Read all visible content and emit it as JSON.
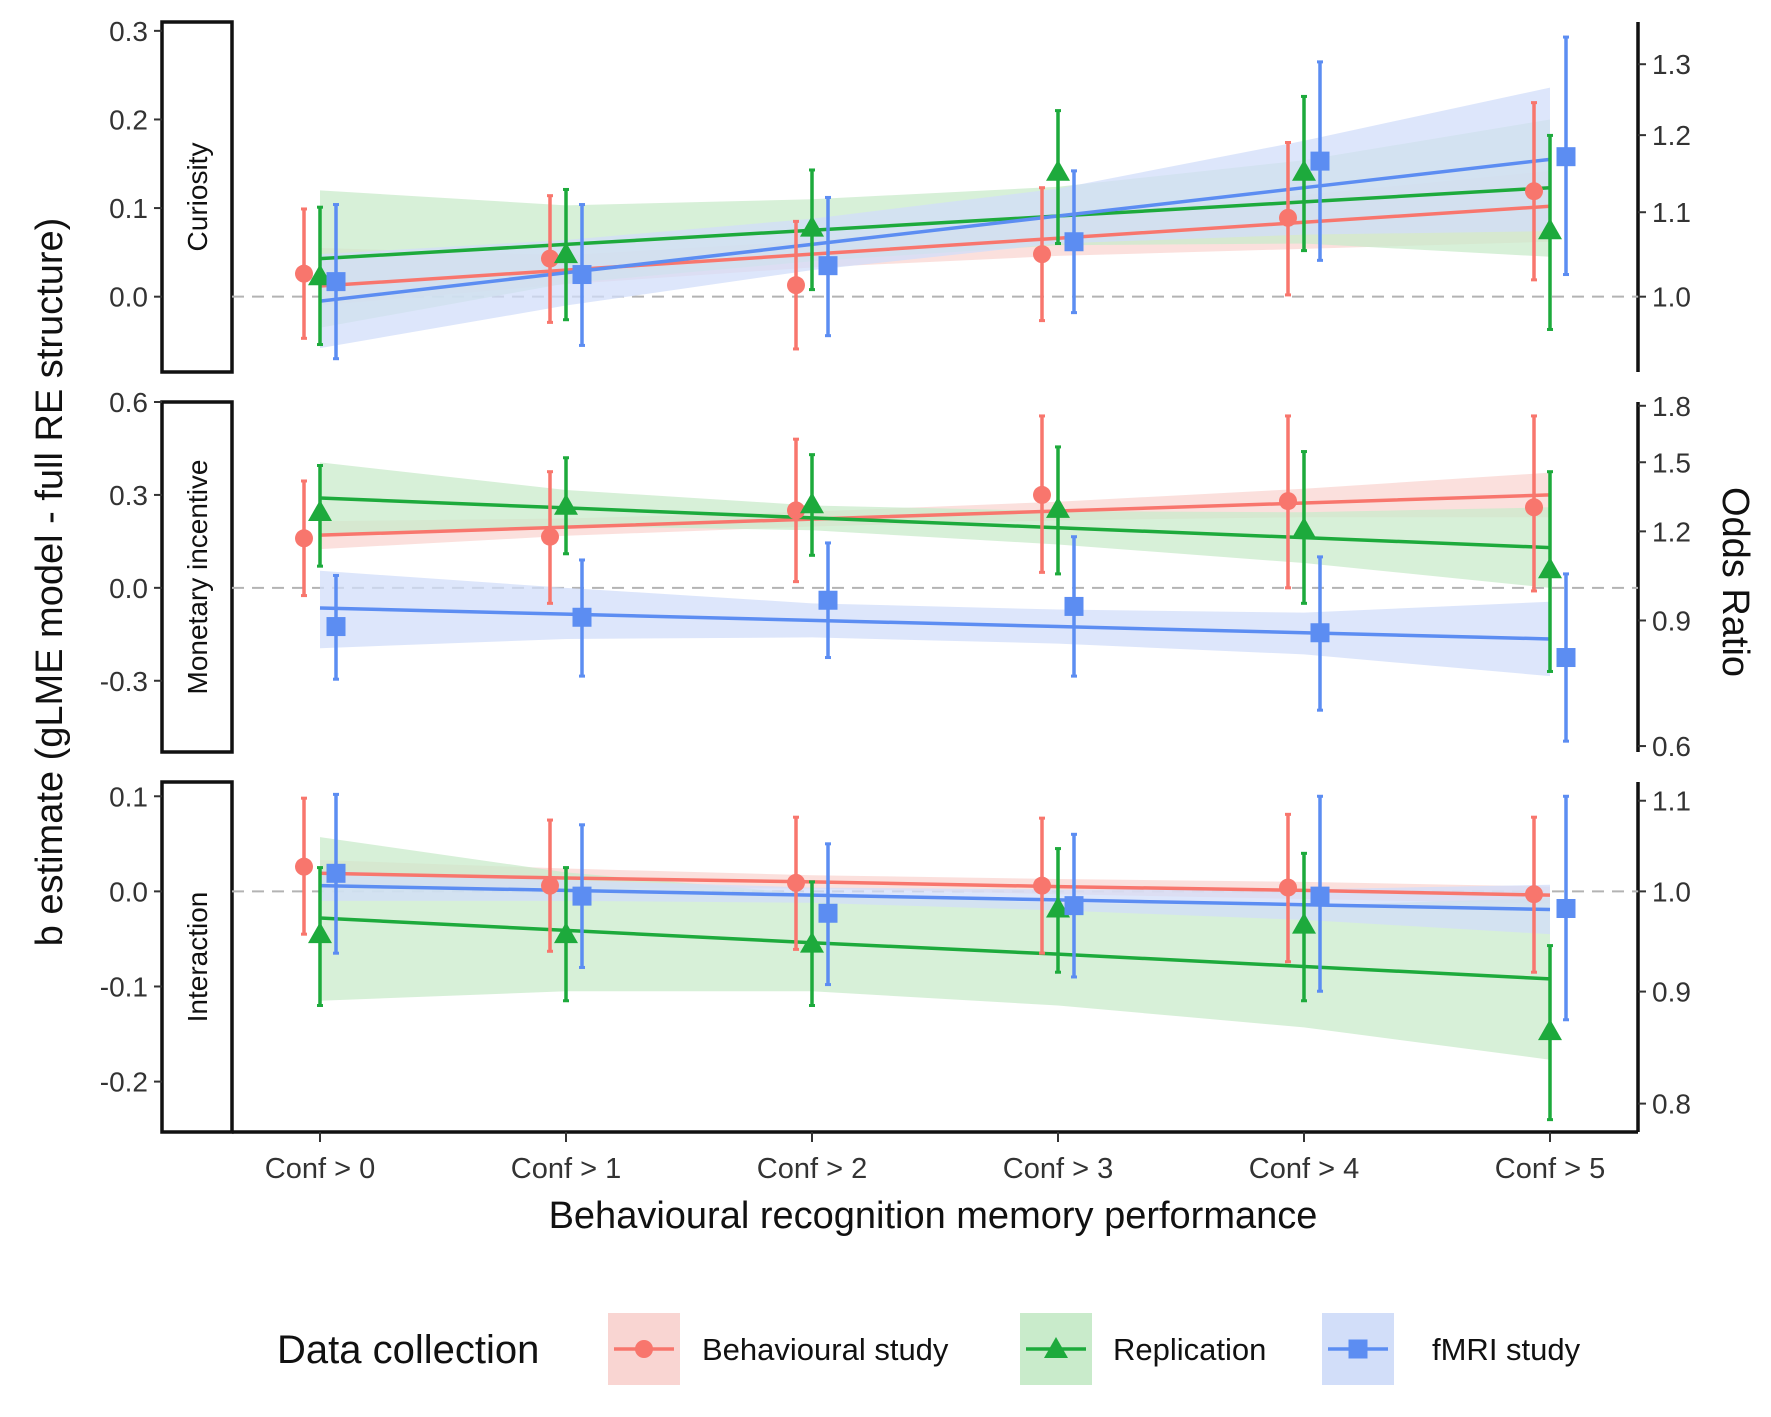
{
  "chart_data": {
    "type": "line",
    "xlabel": "Behavioural recognition memory performance",
    "ylabel": "b estimate (gLME model - full RE structure)",
    "ylabel_right": "Odds Ratio",
    "categories": [
      "Conf > 0",
      "Conf > 1",
      "Conf > 2",
      "Conf > 3",
      "Conf > 4",
      "Conf > 5"
    ],
    "legend": {
      "title": "Data collection",
      "position": "bottom",
      "entries": [
        {
          "name": "Behavioural study",
          "color": "#F8766D",
          "fill": "#F9D5D2",
          "shape": "circle"
        },
        {
          "name": "Replication",
          "color": "#1DAA3C",
          "fill": "#C9EBCB",
          "shape": "triangle"
        },
        {
          "name": "fMRI study",
          "color": "#5C8DF2",
          "fill": "#D2DEF9",
          "shape": "square"
        }
      ]
    },
    "reference_line": 0,
    "grid": false,
    "panels": [
      {
        "strip": "Curiosity",
        "ylim": [
          -0.085,
          0.31
        ],
        "yticks": [
          0.3,
          0.2,
          0.1,
          0.0
        ],
        "ytick_labels": [
          "0.3",
          "0.2",
          "0.1",
          "0.0"
        ],
        "right_ticks": [
          1.3,
          1.2,
          1.1,
          1.0
        ],
        "right_tick_labels": [
          "1.3",
          "1.2",
          "1.1",
          "1.0"
        ],
        "series": [
          {
            "name": "Behavioural study",
            "points": [
              0.026,
              0.043,
              0.013,
              0.048,
              0.089,
              0.119
            ],
            "lower": [
              -0.047,
              -0.029,
              -0.059,
              -0.027,
              0.002,
              0.019
            ],
            "upper": [
              0.099,
              0.114,
              0.085,
              0.123,
              0.174,
              0.219
            ],
            "fit": [
              0.012,
              0.03,
              0.048,
              0.066,
              0.084,
              0.102
            ],
            "band_lower": [
              -0.01,
              0.014,
              0.033,
              0.046,
              0.054,
              0.062
            ],
            "band_upper": [
              0.055,
              0.047,
              0.063,
              0.09,
              0.115,
              0.142
            ]
          },
          {
            "name": "Replication",
            "points": [
              0.023,
              0.048,
              0.078,
              0.141,
              0.141,
              0.075
            ],
            "lower": [
              -0.054,
              -0.026,
              0.008,
              0.06,
              0.052,
              -0.037
            ],
            "upper": [
              0.101,
              0.121,
              0.143,
              0.21,
              0.226,
              0.182
            ],
            "fit": [
              0.043,
              0.059,
              0.075,
              0.091,
              0.107,
              0.123
            ],
            "band_lower": [
              -0.035,
              0.015,
              0.04,
              0.058,
              0.06,
              0.045
            ],
            "band_upper": [
              0.12,
              0.103,
              0.11,
              0.124,
              0.154,
              0.2
            ]
          },
          {
            "name": "fMRI study",
            "points": [
              0.017,
              0.025,
              0.035,
              0.062,
              0.153,
              0.158
            ],
            "lower": [
              -0.07,
              -0.055,
              -0.044,
              -0.018,
              0.041,
              0.025
            ],
            "upper": [
              0.104,
              0.104,
              0.112,
              0.142,
              0.265,
              0.293
            ],
            "fit": [
              -0.005,
              0.027,
              0.059,
              0.091,
              0.123,
              0.155
            ],
            "band_lower": [
              -0.058,
              -0.01,
              0.03,
              0.06,
              0.07,
              0.074
            ],
            "band_upper": [
              0.048,
              0.064,
              0.088,
              0.122,
              0.176,
              0.236
            ]
          }
        ]
      },
      {
        "strip": "Monetary incentive",
        "ylim": [
          -0.53,
          0.6
        ],
        "yticks": [
          0.6,
          0.3,
          0.0,
          -0.3
        ],
        "ytick_labels": [
          "0.6",
          "0.3",
          "0.0",
          "-0.3"
        ],
        "right_ticks": [
          1.8,
          1.5,
          1.2,
          0.9,
          0.6
        ],
        "right_tick_labels": [
          "1.8",
          "1.5",
          "1.2",
          "0.9",
          "0.6"
        ],
        "series": [
          {
            "name": "Behavioural study",
            "points": [
              0.16,
              0.165,
              0.25,
              0.3,
              0.28,
              0.26
            ],
            "lower": [
              -0.025,
              -0.05,
              0.02,
              0.05,
              0.0,
              -0.01
            ],
            "upper": [
              0.345,
              0.375,
              0.48,
              0.555,
              0.555,
              0.555
            ],
            "fit": [
              0.17,
              0.196,
              0.222,
              0.248,
              0.274,
              0.3
            ],
            "band_lower": [
              0.125,
              0.168,
              0.198,
              0.218,
              0.228,
              0.228
            ],
            "band_upper": [
              0.215,
              0.224,
              0.246,
              0.278,
              0.32,
              0.372
            ]
          },
          {
            "name": "Replication",
            "points": [
              0.245,
              0.265,
              0.27,
              0.255,
              0.19,
              0.06
            ],
            "lower": [
              0.07,
              0.11,
              0.105,
              0.045,
              -0.05,
              -0.27
            ],
            "upper": [
              0.395,
              0.42,
              0.43,
              0.455,
              0.44,
              0.375
            ],
            "fit": [
              0.29,
              0.258,
              0.226,
              0.194,
              0.162,
              0.13
            ],
            "band_lower": [
              0.175,
              0.2,
              0.186,
              0.14,
              0.08,
              0.0
            ],
            "band_upper": [
              0.405,
              0.316,
              0.266,
              0.248,
              0.244,
              0.26
            ]
          },
          {
            "name": "fMRI study",
            "points": [
              -0.125,
              -0.095,
              -0.04,
              -0.06,
              -0.145,
              -0.225
            ],
            "lower": [
              -0.295,
              -0.285,
              -0.225,
              -0.285,
              -0.395,
              -0.495
            ],
            "upper": [
              0.04,
              0.09,
              0.145,
              0.165,
              0.1,
              0.045
            ],
            "fit": [
              -0.065,
              -0.085,
              -0.105,
              -0.125,
              -0.145,
              -0.165
            ],
            "band_lower": [
              -0.195,
              -0.165,
              -0.16,
              -0.18,
              -0.215,
              -0.285
            ],
            "band_upper": [
              0.055,
              0.0,
              -0.05,
              -0.07,
              -0.08,
              -0.045
            ]
          }
        ]
      },
      {
        "strip": "Interaction",
        "ylim": [
          -0.253,
          0.115
        ],
        "yticks": [
          0.1,
          0.0,
          -0.1,
          -0.2
        ],
        "ytick_labels": [
          "0.1",
          "0.0",
          "-0.1",
          "-0.2"
        ],
        "right_ticks": [
          1.1,
          1.0,
          0.9,
          0.8
        ],
        "right_tick_labels": [
          "1.1",
          "1.0",
          "0.9",
          "0.8"
        ],
        "series": [
          {
            "name": "Behavioural study",
            "points": [
              0.026,
              0.006,
              0.009,
              0.006,
              0.004,
              -0.003
            ],
            "lower": [
              -0.045,
              -0.063,
              -0.061,
              -0.065,
              -0.074,
              -0.085
            ],
            "upper": [
              0.098,
              0.075,
              0.078,
              0.077,
              0.081,
              0.078
            ],
            "fit": [
              0.019,
              0.014,
              0.01,
              0.005,
              0.001,
              -0.004
            ],
            "band_lower": [
              0.005,
              0.004,
              0.003,
              -0.003,
              -0.008,
              -0.013
            ],
            "band_upper": [
              0.033,
              0.024,
              0.017,
              0.013,
              0.01,
              0.005
            ]
          },
          {
            "name": "Replication",
            "points": [
              -0.045,
              -0.045,
              -0.055,
              -0.018,
              -0.035,
              -0.147
            ],
            "lower": [
              -0.12,
              -0.115,
              -0.12,
              -0.085,
              -0.115,
              -0.24
            ],
            "upper": [
              0.025,
              0.025,
              0.01,
              0.045,
              0.04,
              -0.057
            ],
            "fit": [
              -0.028,
              -0.041,
              -0.054,
              -0.066,
              -0.079,
              -0.092
            ],
            "band_lower": [
              -0.115,
              -0.105,
              -0.105,
              -0.12,
              -0.143,
              -0.177
            ],
            "band_upper": [
              0.057,
              0.02,
              -0.003,
              -0.012,
              -0.015,
              -0.007
            ]
          },
          {
            "name": "fMRI study",
            "points": [
              0.019,
              -0.005,
              -0.023,
              -0.015,
              -0.005,
              -0.018
            ],
            "lower": [
              -0.065,
              -0.08,
              -0.098,
              -0.09,
              -0.105,
              -0.135
            ],
            "upper": [
              0.102,
              0.07,
              0.05,
              0.06,
              0.1,
              0.1
            ],
            "fit": [
              0.006,
              0.001,
              -0.004,
              -0.009,
              -0.014,
              -0.019
            ],
            "band_lower": [
              -0.01,
              -0.01,
              -0.012,
              -0.02,
              -0.03,
              -0.045
            ],
            "band_upper": [
              0.022,
              0.012,
              0.004,
              0.002,
              0.002,
              0.007
            ]
          }
        ]
      }
    ]
  }
}
